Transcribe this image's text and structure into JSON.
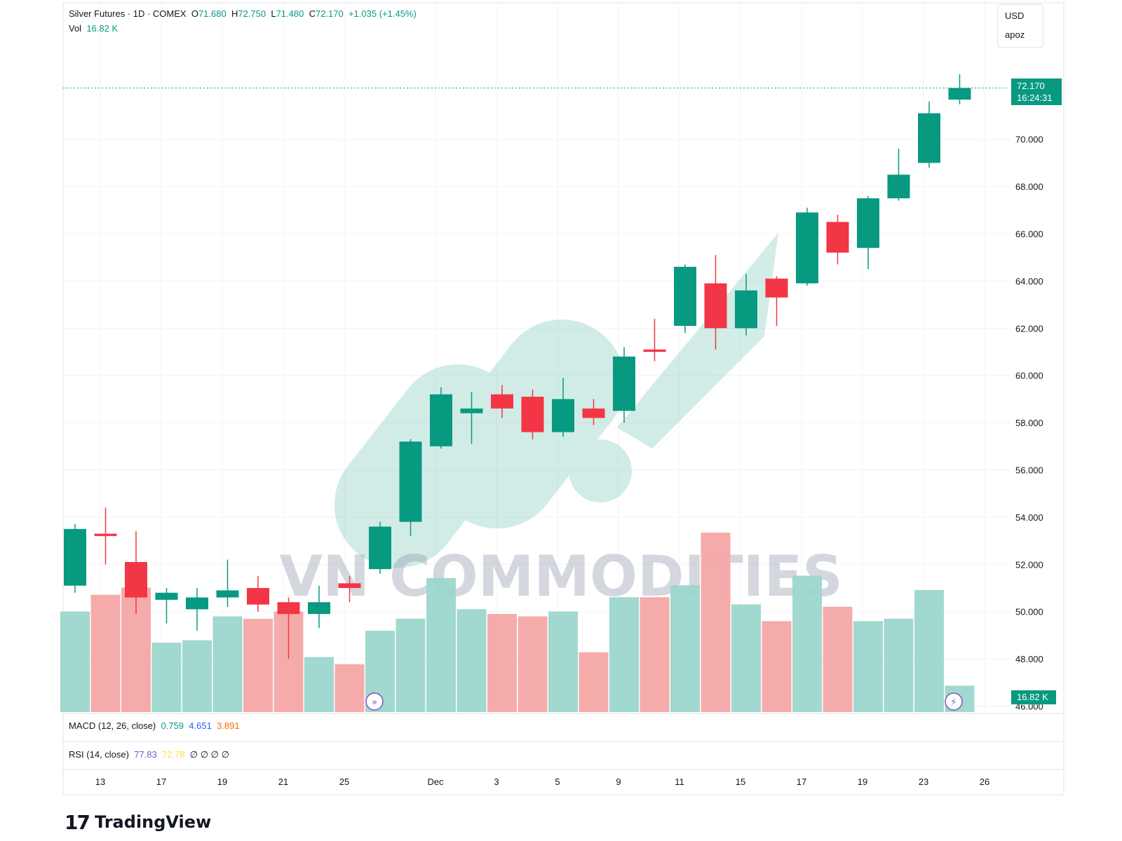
{
  "header": {
    "symbol_line": "Silver Futures · 1D · COMEX",
    "o_label": "O",
    "o_value": "71.680",
    "h_label": "H",
    "h_value": "72.750",
    "l_label": "L",
    "l_value": "71.480",
    "c_label": "C",
    "c_value": "72.170",
    "change": "+1.035 (+1.45%)",
    "vol_label": "Vol",
    "vol_value": "16.82 K"
  },
  "currency_box": {
    "currency": "USD",
    "mode": "apoz"
  },
  "last_price_tag": {
    "price": "72.170",
    "countdown": "16:24:31"
  },
  "volume_tag": "16.82 K",
  "macd": {
    "label": "MACD (12, 26, close)",
    "v1": "0.759",
    "v2": "4.651",
    "v3": "3.891"
  },
  "rsi": {
    "label": "RSI (14, close)",
    "v1": "77.83",
    "v2": "72.78",
    "placeholders": "∅ ∅ ∅ ∅"
  },
  "watermark": "VN COMMODITIES",
  "branding": {
    "mark": "17",
    "name": "TradingView"
  },
  "colors": {
    "up": "#089981",
    "down": "#f23645",
    "up_vol": "#9cd6cc",
    "down_vol": "#f5a6a6",
    "grid": "#f0f3fa"
  },
  "chart_data": {
    "type": "candlestick",
    "title": "Silver Futures · 1D · COMEX",
    "y_axis": {
      "ticks": [
        "46.000",
        "48.000",
        "50.000",
        "52.000",
        "54.000",
        "56.000",
        "58.000",
        "60.000",
        "62.000",
        "64.000",
        "66.000",
        "68.000",
        "70.000"
      ],
      "range": [
        45.6,
        74.4
      ]
    },
    "x_axis": {
      "ticks": [
        "13",
        "17",
        "19",
        "21",
        "25",
        "Dec",
        "3",
        "5",
        "9",
        "11",
        "15",
        "17",
        "19",
        "23",
        "26"
      ]
    },
    "candles": [
      {
        "o": 51.1,
        "h": 53.7,
        "l": 50.8,
        "c": 53.5,
        "vol": 49.8
      },
      {
        "o": 53.3,
        "h": 54.4,
        "l": 52.0,
        "c": 53.2,
        "vol": 50.5
      },
      {
        "o": 52.1,
        "h": 53.4,
        "l": 49.9,
        "c": 50.6,
        "vol": 50.8
      },
      {
        "o": 50.5,
        "h": 51.0,
        "l": 49.5,
        "c": 50.8,
        "vol": 48.5
      },
      {
        "o": 50.1,
        "h": 51.0,
        "l": 49.2,
        "c": 50.6,
        "vol": 48.6
      },
      {
        "o": 50.6,
        "h": 52.2,
        "l": 50.2,
        "c": 50.9,
        "vol": 49.6
      },
      {
        "o": 51.0,
        "h": 51.5,
        "l": 50.0,
        "c": 50.3,
        "vol": 49.5
      },
      {
        "o": 50.4,
        "h": 50.6,
        "l": 48.0,
        "c": 49.9,
        "vol": 49.8
      },
      {
        "o": 49.9,
        "h": 51.1,
        "l": 49.3,
        "c": 50.4,
        "vol": 47.9
      },
      {
        "o": 51.2,
        "h": 51.5,
        "l": 50.4,
        "c": 51.0,
        "vol": 47.6
      },
      {
        "o": 51.8,
        "h": 53.8,
        "l": 51.6,
        "c": 53.6,
        "vol": 49.0
      },
      {
        "o": 53.8,
        "h": 57.3,
        "l": 53.2,
        "c": 57.2,
        "vol": 49.5
      },
      {
        "o": 57.0,
        "h": 59.5,
        "l": 56.9,
        "c": 59.2,
        "vol": 51.2
      },
      {
        "o": 58.4,
        "h": 59.3,
        "l": 57.1,
        "c": 58.6,
        "vol": 49.9
      },
      {
        "o": 59.2,
        "h": 59.6,
        "l": 58.2,
        "c": 58.6,
        "vol": 49.7
      },
      {
        "o": 59.1,
        "h": 59.4,
        "l": 57.3,
        "c": 57.6,
        "vol": 49.6
      },
      {
        "o": 57.6,
        "h": 59.9,
        "l": 57.4,
        "c": 59.0,
        "vol": 49.8
      },
      {
        "o": 58.6,
        "h": 59.0,
        "l": 57.9,
        "c": 58.2,
        "vol": 48.1
      },
      {
        "o": 58.5,
        "h": 61.2,
        "l": 58.0,
        "c": 60.8,
        "vol": 50.4
      },
      {
        "o": 61.1,
        "h": 62.4,
        "l": 60.6,
        "c": 61.0,
        "vol": 50.4
      },
      {
        "o": 62.1,
        "h": 64.7,
        "l": 61.8,
        "c": 64.6,
        "vol": 50.9
      },
      {
        "o": 63.9,
        "h": 65.1,
        "l": 61.1,
        "c": 62.0,
        "vol": 53.1
      },
      {
        "o": 62.0,
        "h": 64.3,
        "l": 61.7,
        "c": 63.6,
        "vol": 50.1
      },
      {
        "o": 64.1,
        "h": 64.2,
        "l": 62.1,
        "c": 63.3,
        "vol": 49.4
      },
      {
        "o": 63.9,
        "h": 67.1,
        "l": 63.8,
        "c": 66.9,
        "vol": 51.3
      },
      {
        "o": 66.5,
        "h": 66.8,
        "l": 64.7,
        "c": 65.2,
        "vol": 50.0
      },
      {
        "o": 65.4,
        "h": 67.6,
        "l": 64.5,
        "c": 67.5,
        "vol": 49.4
      },
      {
        "o": 67.5,
        "h": 69.6,
        "l": 67.4,
        "c": 68.5,
        "vol": 49.5
      },
      {
        "o": 69.0,
        "h": 71.6,
        "l": 68.8,
        "c": 71.1,
        "vol": 50.7
      },
      {
        "o": 71.68,
        "h": 72.75,
        "l": 71.48,
        "c": 72.17,
        "vol": 46.7
      }
    ]
  }
}
